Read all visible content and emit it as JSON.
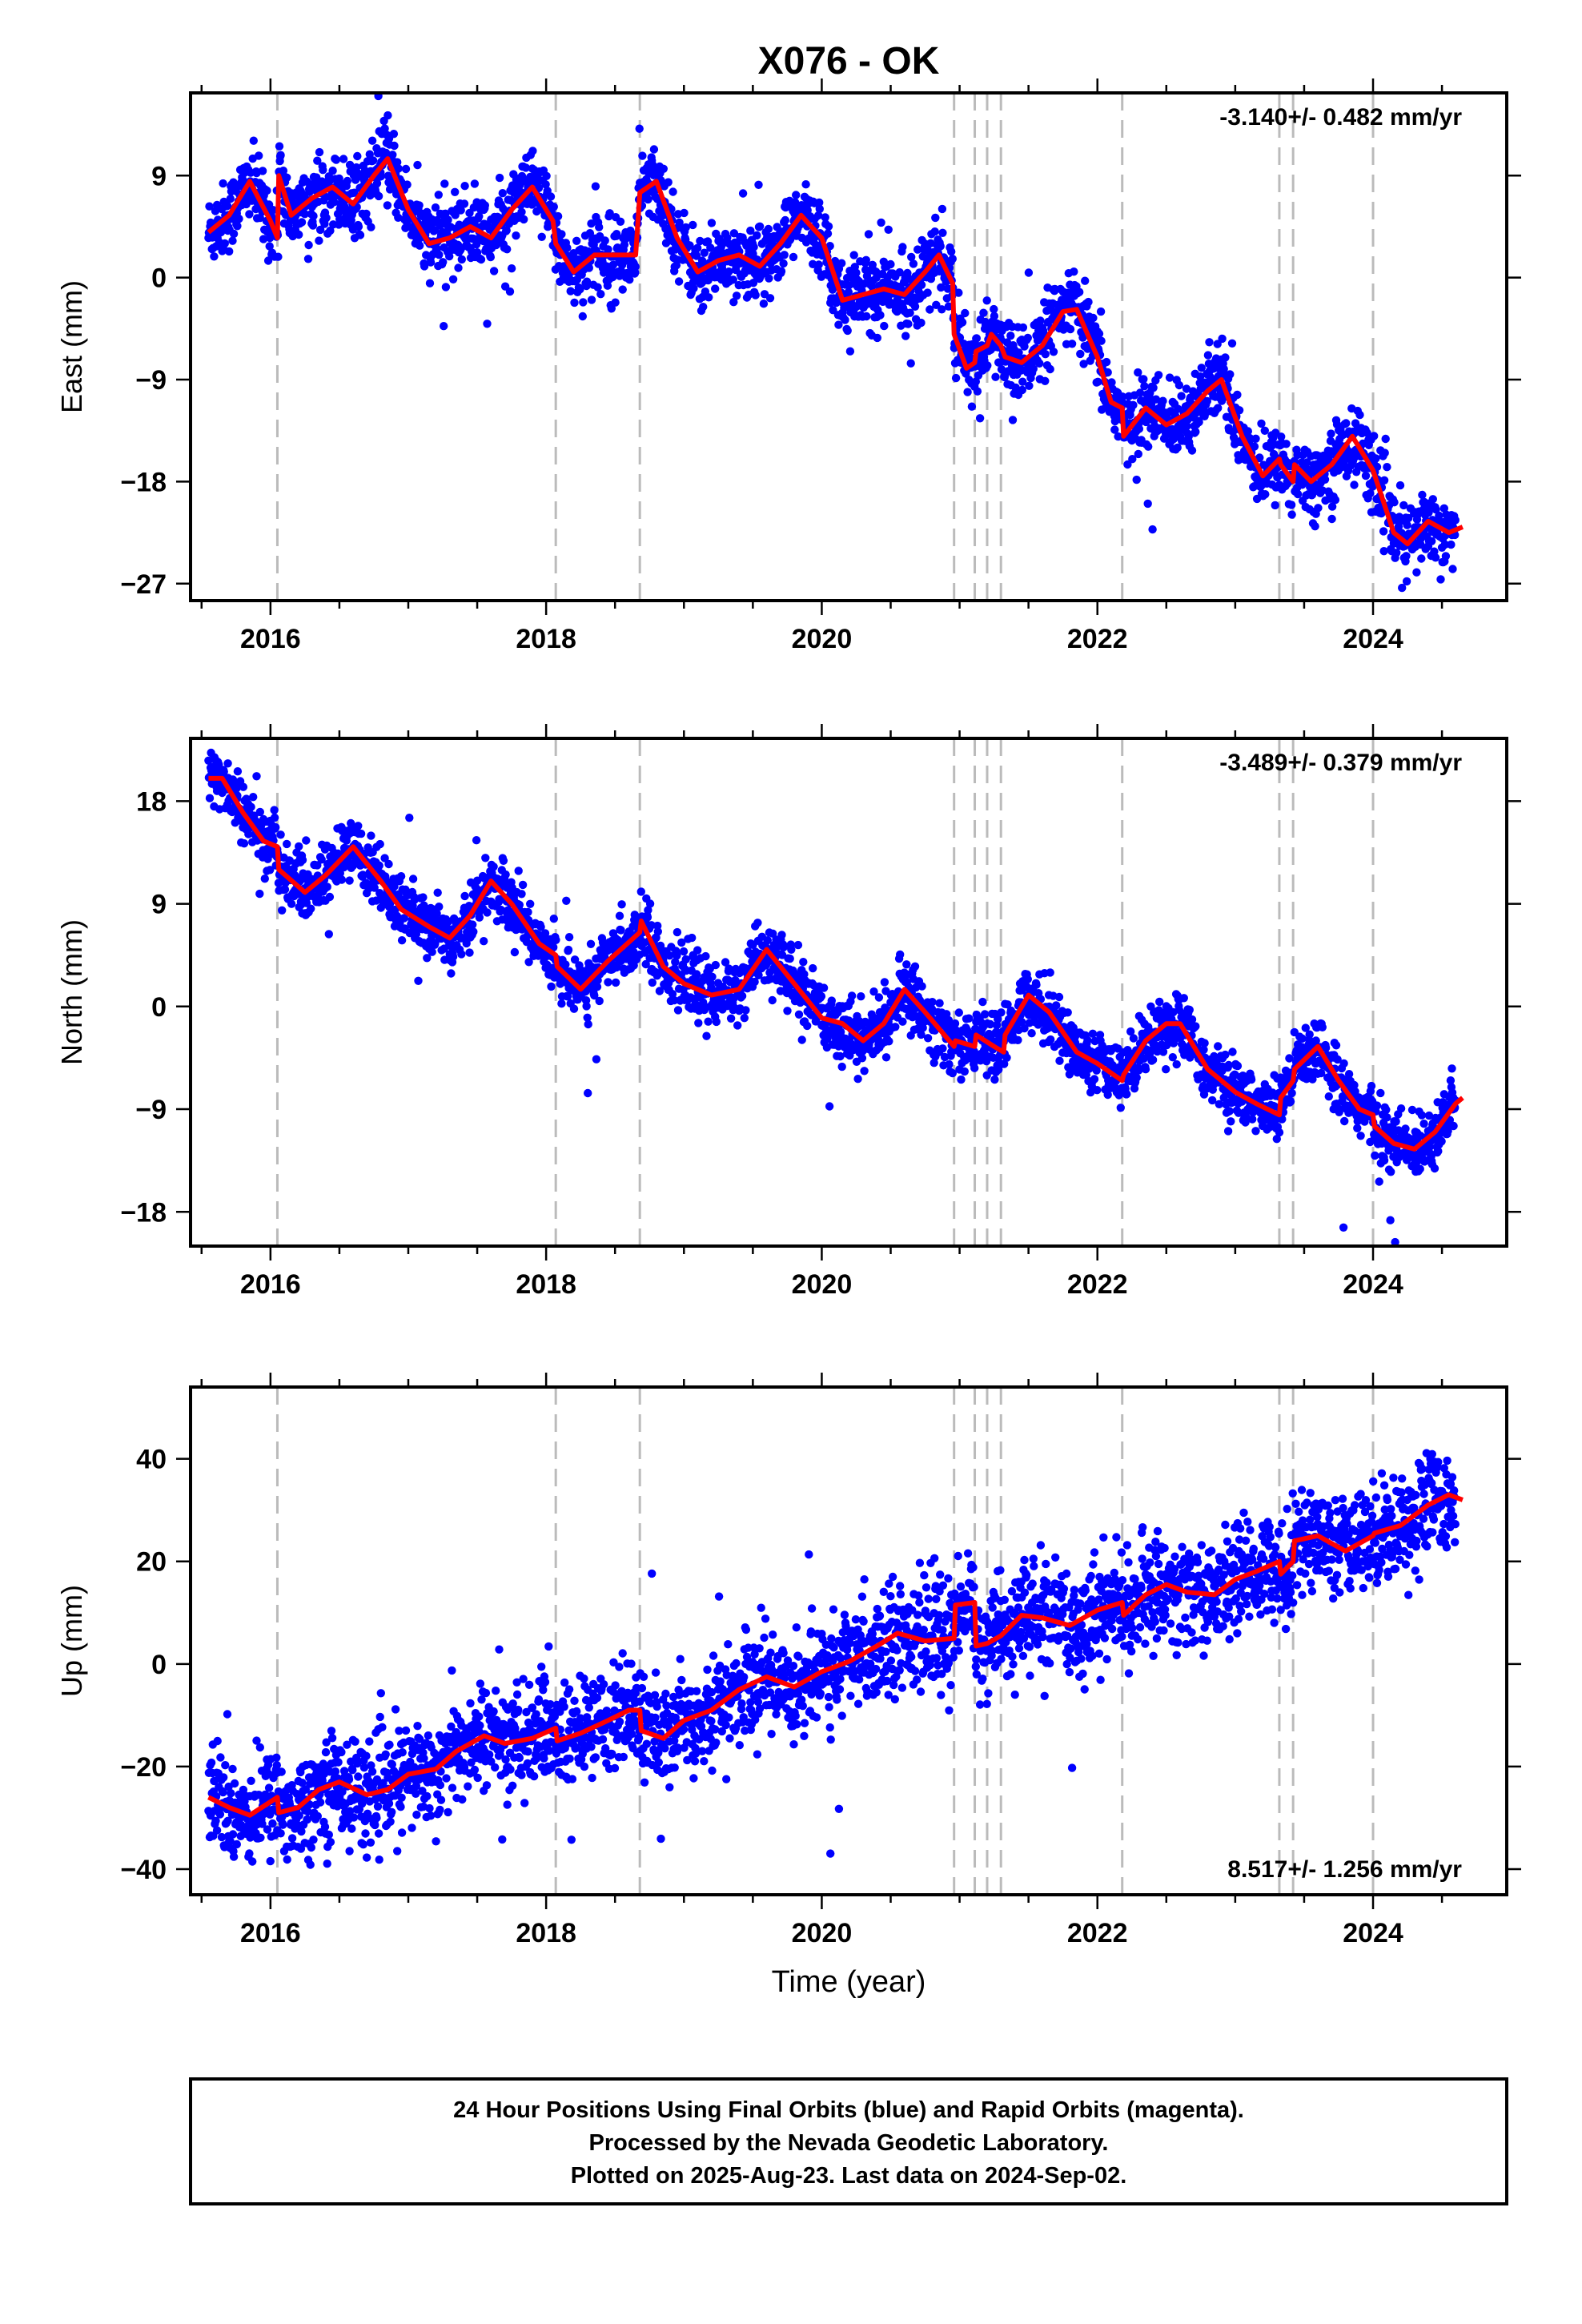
{
  "title": "X076 - OK",
  "colors": {
    "final_orbits": "#0000ff",
    "model": "#ff0000",
    "discontinuity": "#bbbbbb",
    "frame": "#000000"
  },
  "xlabel": "Time (year)",
  "footer": {
    "line1": "24 Hour Positions Using Final Orbits (blue) and Rapid Orbits (magenta).",
    "line2": "Processed by the Nevada Geodetic Laboratory.",
    "line3": "Plotted on 2025-Aug-23. Last data on 2024-Sep-02."
  },
  "chart_data": [
    {
      "type": "scatter",
      "ylabel": "East (mm)",
      "rate_label": "-3.140+/- 0.482 mm/yr",
      "xlim": [
        2015.42,
        2024.97
      ],
      "ylim": [
        -28.5,
        16.3
      ],
      "xticks": [
        2016,
        2018,
        2020,
        2022,
        2024
      ],
      "yticks": [
        -27,
        -18,
        -9,
        0,
        9
      ],
      "series": [
        {
          "role": "model",
          "x": [
            2015.55,
            2015.7,
            2015.85,
            2016.0,
            2016.05,
            2016.06,
            2016.15,
            2016.3,
            2016.45,
            2016.6,
            2016.75,
            2016.85,
            2017.0,
            2017.15,
            2017.3,
            2017.45,
            2017.6,
            2017.75,
            2017.9,
            2018.05,
            2018.07,
            2018.2,
            2018.35,
            2018.5,
            2018.65,
            2018.68,
            2018.8,
            2018.95,
            2019.1,
            2019.25,
            2019.4,
            2019.55,
            2019.7,
            2019.85,
            2020.0,
            2020.15,
            2020.3,
            2020.45,
            2020.6,
            2020.75,
            2020.85,
            2020.95,
            2020.96,
            2021.05,
            2021.11,
            2021.12,
            2021.2,
            2021.23,
            2021.3,
            2021.33,
            2021.45,
            2021.6,
            2021.75,
            2021.85,
            2022.0,
            2022.1,
            2022.18,
            2022.19,
            2022.35,
            2022.5,
            2022.65,
            2022.8,
            2022.9,
            2023.05,
            2023.2,
            2023.32,
            2023.33,
            2023.42,
            2023.43,
            2023.55,
            2023.7,
            2023.85,
            2024.0,
            2024.15,
            2024.25,
            2024.4,
            2024.55,
            2024.65
          ],
          "y": [
            4,
            5.5,
            8.5,
            5,
            3.5,
            9,
            5.5,
            7,
            8,
            6.5,
            9,
            10.5,
            6,
            3,
            3.5,
            4.5,
            3.5,
            6,
            8,
            5,
            3,
            0.5,
            2,
            2,
            2,
            7.5,
            8.5,
            3.5,
            0.5,
            1.5,
            2,
            1,
            3,
            5.5,
            3.5,
            -2,
            -1.5,
            -1,
            -1.5,
            0.5,
            2,
            -0.5,
            -5,
            -8,
            -7.5,
            -6.5,
            -6,
            -5,
            -6,
            -7,
            -7.5,
            -6,
            -3,
            -2.8,
            -7,
            -11,
            -11.5,
            -14,
            -11.5,
            -13,
            -12,
            -10,
            -9,
            -14,
            -17.5,
            -16,
            -16.5,
            -18,
            -16.5,
            -18,
            -16.5,
            -14,
            -17,
            -22.5,
            -23.5,
            -21.5,
            -22.5,
            -22
          ]
        },
        {
          "role": "final_orbits",
          "note": "daily observations: ~3000 points scattered around the model with ~1.5 mm noise, Jul 2015 - Sep 2024"
        }
      ],
      "discontinuities": [
        2016.05,
        2018.07,
        2018.68,
        2020.96,
        2021.11,
        2021.2,
        2021.3,
        2022.18,
        2023.32,
        2023.42,
        2024.0
      ]
    },
    {
      "type": "scatter",
      "ylabel": "North (mm)",
      "rate_label": "-3.489+/- 0.379 mm/yr",
      "xlim": [
        2015.42,
        2024.97
      ],
      "ylim": [
        -21,
        23.5
      ],
      "xticks": [
        2016,
        2018,
        2020,
        2022,
        2024
      ],
      "yticks": [
        -18,
        -9,
        0,
        9,
        18
      ],
      "series": [
        {
          "role": "model",
          "x": [
            2015.55,
            2015.65,
            2015.8,
            2015.95,
            2016.05,
            2016.06,
            2016.25,
            2016.4,
            2016.6,
            2016.8,
            2016.95,
            2017.15,
            2017.3,
            2017.45,
            2017.6,
            2017.75,
            2017.95,
            2018.07,
            2018.08,
            2018.25,
            2018.45,
            2018.68,
            2018.69,
            2018.85,
            2019.0,
            2019.2,
            2019.4,
            2019.6,
            2019.8,
            2020.0,
            2020.15,
            2020.3,
            2020.45,
            2020.6,
            2020.75,
            2020.96,
            2020.97,
            2021.11,
            2021.12,
            2021.25,
            2021.32,
            2021.33,
            2021.5,
            2021.65,
            2021.85,
            2022.0,
            2022.18,
            2022.19,
            2022.35,
            2022.5,
            2022.6,
            2022.8,
            2023.0,
            2023.15,
            2023.32,
            2023.33,
            2023.42,
            2023.43,
            2023.6,
            2023.75,
            2023.9,
            2024.0,
            2024.01,
            2024.15,
            2024.3,
            2024.45,
            2024.6,
            2024.65
          ],
          "y": [
            20,
            20,
            17,
            14.5,
            14,
            12,
            10,
            11.5,
            14,
            11,
            8.5,
            7,
            6,
            8,
            11,
            9,
            5.5,
            4.5,
            3.5,
            1.5,
            4,
            6.5,
            7.5,
            3.5,
            2,
            1,
            1.5,
            5,
            2,
            -1,
            -1.5,
            -3,
            -1.5,
            1.5,
            -0.5,
            -3.5,
            -3,
            -3.5,
            -2.5,
            -3.5,
            -4,
            -2.5,
            1,
            -0.5,
            -4,
            -5,
            -6.5,
            -6,
            -3,
            -1.5,
            -1.5,
            -5.5,
            -7.5,
            -8.5,
            -9.5,
            -8,
            -6.5,
            -5.5,
            -3.5,
            -6.5,
            -9,
            -9.5,
            -10.5,
            -12,
            -12.5,
            -11,
            -8.5,
            -8
          ]
        },
        {
          "role": "final_orbits",
          "note": "daily observations: ~3000 points scattered around the model with ~1.3 mm noise, Jul 2015 - Sep 2024"
        }
      ],
      "discontinuities": [
        2016.05,
        2018.07,
        2018.68,
        2020.96,
        2021.11,
        2021.2,
        2021.3,
        2022.18,
        2023.32,
        2023.42,
        2024.0
      ]
    },
    {
      "type": "scatter",
      "ylabel": "Up (mm)",
      "rate_label": "8.517+/- 1.256 mm/yr",
      "xlim": [
        2015.42,
        2024.97
      ],
      "ylim": [
        -45,
        54
      ],
      "xticks": [
        2016,
        2018,
        2020,
        2022,
        2024
      ],
      "yticks": [
        -40,
        -20,
        0,
        20,
        40
      ],
      "series": [
        {
          "role": "model",
          "x": [
            2015.55,
            2015.7,
            2015.85,
            2016.05,
            2016.06,
            2016.2,
            2016.35,
            2016.5,
            2016.7,
            2016.85,
            2017.0,
            2017.2,
            2017.35,
            2017.55,
            2017.7,
            2017.9,
            2018.07,
            2018.08,
            2018.25,
            2018.45,
            2018.6,
            2018.68,
            2018.69,
            2018.85,
            2019.0,
            2019.2,
            2019.4,
            2019.6,
            2019.8,
            2020.0,
            2020.2,
            2020.4,
            2020.55,
            2020.75,
            2020.96,
            2020.97,
            2021.11,
            2021.12,
            2021.2,
            2021.3,
            2021.45,
            2021.6,
            2021.8,
            2022.0,
            2022.18,
            2022.19,
            2022.35,
            2022.5,
            2022.65,
            2022.85,
            2023.0,
            2023.15,
            2023.32,
            2023.33,
            2023.42,
            2023.43,
            2023.6,
            2023.8,
            2024.0,
            2024.01,
            2024.2,
            2024.4,
            2024.55,
            2024.65
          ],
          "y": [
            -26,
            -28,
            -29.5,
            -26,
            -29,
            -28,
            -24.5,
            -23,
            -25.5,
            -24.5,
            -21.5,
            -20.5,
            -17,
            -14,
            -15.5,
            -14.5,
            -12.5,
            -15,
            -13.5,
            -11,
            -9,
            -9,
            -13,
            -14.5,
            -11,
            -9,
            -5,
            -2.5,
            -4.5,
            -1.5,
            0.5,
            3.5,
            6,
            4.5,
            5,
            11.5,
            12,
            3.5,
            4,
            5.5,
            9.5,
            9,
            7.5,
            10.5,
            12,
            9.5,
            13.5,
            15.5,
            14,
            13.5,
            16.5,
            18,
            20,
            17.5,
            20,
            24,
            25,
            22,
            25,
            25.5,
            27,
            31,
            33,
            32
          ]
        },
        {
          "role": "final_orbits",
          "note": "daily observations: ~3000 points scattered around the model with ~5 mm noise, Jul 2015 - Sep 2024"
        }
      ],
      "discontinuities": [
        2016.05,
        2018.07,
        2018.68,
        2020.96,
        2021.11,
        2021.2,
        2021.3,
        2022.18,
        2023.32,
        2023.42,
        2024.0
      ]
    }
  ]
}
